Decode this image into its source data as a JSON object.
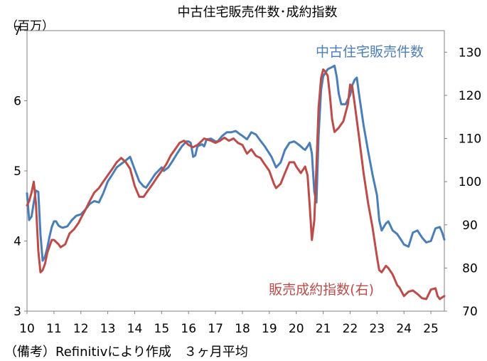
{
  "chart_data": {
    "type": "line",
    "title": "中古住宅販売件数･成約指数",
    "y_left_unit": "（百万）",
    "y_left_lim": [
      3,
      7
    ],
    "y_left_ticks": [
      "3",
      "4",
      "5",
      "6",
      "7"
    ],
    "y_right_lim": [
      70,
      135
    ],
    "y_right_ticks": [
      "70",
      "80",
      "90",
      "100",
      "110",
      "120",
      "130"
    ],
    "x_range": [
      2010,
      2025.5
    ],
    "x_ticks": [
      "10",
      "11",
      "12",
      "13",
      "14",
      "15",
      "16",
      "17",
      "18",
      "19",
      "20",
      "21",
      "22",
      "23",
      "24",
      "25"
    ],
    "note": "（備考）Refinitivにより作成　３ヶ月平均",
    "series": [
      {
        "name": "中古住宅販売件数",
        "axis": "left",
        "color": "#4a7ebb",
        "points": [
          [
            2010.0,
            4.68
          ],
          [
            2010.08,
            4.3
          ],
          [
            2010.17,
            4.35
          ],
          [
            2010.25,
            4.55
          ],
          [
            2010.33,
            4.72
          ],
          [
            2010.42,
            4.7
          ],
          [
            2010.5,
            4.1
          ],
          [
            2010.58,
            3.72
          ],
          [
            2010.67,
            3.78
          ],
          [
            2010.75,
            3.9
          ],
          [
            2010.83,
            4.05
          ],
          [
            2010.92,
            4.2
          ],
          [
            2011.0,
            4.28
          ],
          [
            2011.08,
            4.28
          ],
          [
            2011.17,
            4.22
          ],
          [
            2011.25,
            4.2
          ],
          [
            2011.33,
            4.19
          ],
          [
            2011.5,
            4.21
          ],
          [
            2011.67,
            4.3
          ],
          [
            2011.83,
            4.36
          ],
          [
            2012.0,
            4.38
          ],
          [
            2012.17,
            4.45
          ],
          [
            2012.33,
            4.53
          ],
          [
            2012.5,
            4.57
          ],
          [
            2012.67,
            4.55
          ],
          [
            2012.83,
            4.68
          ],
          [
            2013.0,
            4.85
          ],
          [
            2013.17,
            4.95
          ],
          [
            2013.33,
            5.05
          ],
          [
            2013.5,
            5.1
          ],
          [
            2013.67,
            5.15
          ],
          [
            2013.83,
            5.2
          ],
          [
            2014.0,
            5.02
          ],
          [
            2014.17,
            4.85
          ],
          [
            2014.33,
            4.78
          ],
          [
            2014.42,
            4.76
          ],
          [
            2014.58,
            4.85
          ],
          [
            2014.75,
            4.95
          ],
          [
            2015.0,
            5.05
          ],
          [
            2015.08,
            5.0
          ],
          [
            2015.25,
            5.05
          ],
          [
            2015.42,
            5.15
          ],
          [
            2015.58,
            5.25
          ],
          [
            2015.75,
            5.35
          ],
          [
            2015.92,
            5.42
          ],
          [
            2016.0,
            5.42
          ],
          [
            2016.08,
            5.4
          ],
          [
            2016.17,
            5.2
          ],
          [
            2016.25,
            5.22
          ],
          [
            2016.33,
            5.35
          ],
          [
            2016.5,
            5.38
          ],
          [
            2016.58,
            5.35
          ],
          [
            2016.67,
            5.45
          ],
          [
            2016.83,
            5.46
          ],
          [
            2017.0,
            5.42
          ],
          [
            2017.08,
            5.42
          ],
          [
            2017.25,
            5.5
          ],
          [
            2017.42,
            5.55
          ],
          [
            2017.58,
            5.55
          ],
          [
            2017.75,
            5.57
          ],
          [
            2017.92,
            5.52
          ],
          [
            2018.0,
            5.5
          ],
          [
            2018.17,
            5.45
          ],
          [
            2018.33,
            5.55
          ],
          [
            2018.5,
            5.52
          ],
          [
            2018.67,
            5.43
          ],
          [
            2018.83,
            5.35
          ],
          [
            2019.0,
            5.25
          ],
          [
            2019.08,
            5.2
          ],
          [
            2019.25,
            5.05
          ],
          [
            2019.42,
            5.12
          ],
          [
            2019.58,
            5.3
          ],
          [
            2019.75,
            5.4
          ],
          [
            2019.92,
            5.42
          ],
          [
            2020.0,
            5.4
          ],
          [
            2020.17,
            5.35
          ],
          [
            2020.25,
            5.32
          ],
          [
            2020.33,
            5.3
          ],
          [
            2020.42,
            5.35
          ],
          [
            2020.5,
            5.4
          ],
          [
            2020.58,
            5.25
          ],
          [
            2020.67,
            4.7
          ],
          [
            2020.75,
            4.55
          ],
          [
            2020.83,
            5.5
          ],
          [
            2020.92,
            6.15
          ],
          [
            2021.0,
            6.35
          ],
          [
            2021.17,
            6.45
          ],
          [
            2021.33,
            6.48
          ],
          [
            2021.42,
            6.5
          ],
          [
            2021.5,
            6.35
          ],
          [
            2021.58,
            6.1
          ],
          [
            2021.67,
            5.95
          ],
          [
            2021.83,
            5.95
          ],
          [
            2022.0,
            6.08
          ],
          [
            2022.08,
            6.22
          ],
          [
            2022.17,
            6.3
          ],
          [
            2022.25,
            6.33
          ],
          [
            2022.33,
            6.1
          ],
          [
            2022.5,
            5.65
          ],
          [
            2022.67,
            5.28
          ],
          [
            2022.83,
            4.95
          ],
          [
            2023.0,
            4.65
          ],
          [
            2023.08,
            4.3
          ],
          [
            2023.17,
            4.15
          ],
          [
            2023.33,
            4.25
          ],
          [
            2023.42,
            4.28
          ],
          [
            2023.58,
            4.15
          ],
          [
            2023.75,
            4.1
          ],
          [
            2023.92,
            4.0
          ],
          [
            2024.0,
            3.95
          ],
          [
            2024.17,
            3.92
          ],
          [
            2024.33,
            4.12
          ],
          [
            2024.5,
            4.15
          ],
          [
            2024.67,
            4.05
          ],
          [
            2024.83,
            3.98
          ],
          [
            2025.0,
            4.0
          ],
          [
            2025.17,
            4.18
          ],
          [
            2025.33,
            4.2
          ],
          [
            2025.42,
            4.12
          ],
          [
            2025.5,
            4.02
          ]
        ]
      },
      {
        "name": "販売成約指数(右)",
        "axis": "right",
        "color": "#be4b48",
        "points": [
          [
            2010.0,
            94.5
          ],
          [
            2010.08,
            95.5
          ],
          [
            2010.17,
            97.5
          ],
          [
            2010.25,
            100.0
          ],
          [
            2010.33,
            95.0
          ],
          [
            2010.42,
            84.0
          ],
          [
            2010.5,
            79.0
          ],
          [
            2010.58,
            79.5
          ],
          [
            2010.67,
            81.0
          ],
          [
            2010.75,
            83.5
          ],
          [
            2010.92,
            86.5
          ],
          [
            2011.0,
            86.5
          ],
          [
            2011.17,
            85.5
          ],
          [
            2011.25,
            84.8
          ],
          [
            2011.42,
            85.5
          ],
          [
            2011.58,
            88.0
          ],
          [
            2011.75,
            89.0
          ],
          [
            2011.92,
            90.5
          ],
          [
            2012.0,
            91.5
          ],
          [
            2012.17,
            93.5
          ],
          [
            2012.33,
            95.5
          ],
          [
            2012.5,
            97.5
          ],
          [
            2012.67,
            98.5
          ],
          [
            2012.83,
            100.0
          ],
          [
            2013.0,
            101.5
          ],
          [
            2013.17,
            103.0
          ],
          [
            2013.33,
            104.5
          ],
          [
            2013.5,
            105.5
          ],
          [
            2013.67,
            104.5
          ],
          [
            2013.83,
            103.0
          ],
          [
            2014.0,
            99.0
          ],
          [
            2014.17,
            96.5
          ],
          [
            2014.33,
            96.5
          ],
          [
            2014.5,
            98.0
          ],
          [
            2014.67,
            99.5
          ],
          [
            2014.83,
            101.0
          ],
          [
            2015.0,
            102.5
          ],
          [
            2015.17,
            104.0
          ],
          [
            2015.33,
            106.0
          ],
          [
            2015.5,
            107.5
          ],
          [
            2015.67,
            109.0
          ],
          [
            2015.83,
            109.5
          ],
          [
            2016.0,
            108.5
          ],
          [
            2016.17,
            108.0
          ],
          [
            2016.33,
            108.5
          ],
          [
            2016.5,
            109.5
          ],
          [
            2016.58,
            110.0
          ],
          [
            2016.67,
            109.8
          ],
          [
            2016.83,
            109.5
          ],
          [
            2017.0,
            109.0
          ],
          [
            2017.17,
            109.5
          ],
          [
            2017.33,
            110.2
          ],
          [
            2017.5,
            109.5
          ],
          [
            2017.67,
            110.0
          ],
          [
            2017.83,
            109.0
          ],
          [
            2018.0,
            108.5
          ],
          [
            2018.17,
            106.5
          ],
          [
            2018.33,
            107.5
          ],
          [
            2018.5,
            106.0
          ],
          [
            2018.67,
            105.5
          ],
          [
            2018.83,
            104.0
          ],
          [
            2019.0,
            102.5
          ],
          [
            2019.17,
            99.5
          ],
          [
            2019.25,
            98.5
          ],
          [
            2019.42,
            99.5
          ],
          [
            2019.58,
            102.0
          ],
          [
            2019.75,
            104.5
          ],
          [
            2019.92,
            104.5
          ],
          [
            2020.0,
            103.5
          ],
          [
            2020.17,
            102.0
          ],
          [
            2020.33,
            103.5
          ],
          [
            2020.42,
            101.5
          ],
          [
            2020.5,
            94.5
          ],
          [
            2020.58,
            86.5
          ],
          [
            2020.67,
            91.0
          ],
          [
            2020.75,
            103.5
          ],
          [
            2020.83,
            117.0
          ],
          [
            2020.92,
            124.0
          ],
          [
            2021.0,
            126.0
          ],
          [
            2021.08,
            125.5
          ],
          [
            2021.17,
            124.5
          ],
          [
            2021.25,
            120.0
          ],
          [
            2021.33,
            114.5
          ],
          [
            2021.42,
            111.5
          ],
          [
            2021.58,
            112.5
          ],
          [
            2021.75,
            114.0
          ],
          [
            2021.92,
            118.0
          ],
          [
            2022.0,
            122.5
          ],
          [
            2022.08,
            122.0
          ],
          [
            2022.17,
            118.0
          ],
          [
            2022.33,
            110.5
          ],
          [
            2022.5,
            102.0
          ],
          [
            2022.67,
            95.0
          ],
          [
            2022.83,
            89.5
          ],
          [
            2023.0,
            82.5
          ],
          [
            2023.08,
            79.5
          ],
          [
            2023.17,
            79.0
          ],
          [
            2023.33,
            80.5
          ],
          [
            2023.42,
            80.0
          ],
          [
            2023.58,
            78.5
          ],
          [
            2023.75,
            76.0
          ],
          [
            2023.83,
            75.5
          ],
          [
            2024.0,
            73.5
          ],
          [
            2024.17,
            74.5
          ],
          [
            2024.33,
            74.8
          ],
          [
            2024.5,
            74.0
          ],
          [
            2024.67,
            73.0
          ],
          [
            2024.83,
            72.8
          ],
          [
            2025.0,
            75.0
          ],
          [
            2025.17,
            75.3
          ],
          [
            2025.25,
            73.5
          ],
          [
            2025.33,
            72.8
          ],
          [
            2025.42,
            73.2
          ],
          [
            2025.5,
            73.5
          ]
        ]
      }
    ]
  }
}
